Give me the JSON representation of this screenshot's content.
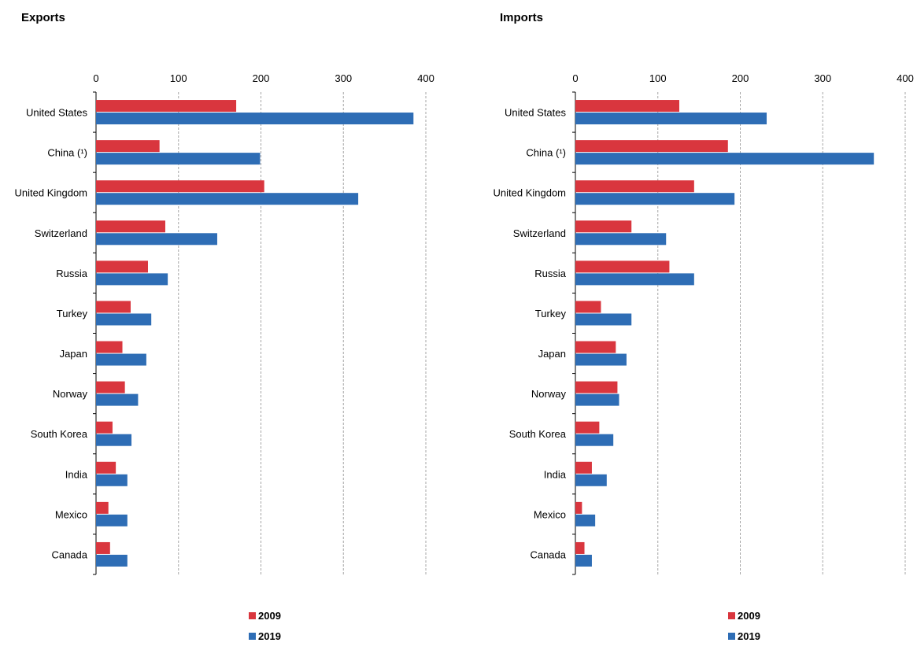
{
  "colors": {
    "series_2009": "#d9363e",
    "series_2019": "#2e6db5",
    "grid": "#a6a6a6",
    "axis": "#000000"
  },
  "chart_data": [
    {
      "type": "bar",
      "orientation": "horizontal",
      "title": "Exports",
      "categories": [
        "United States",
        "China (¹)",
        "United Kingdom",
        "Switzerland",
        "Russia",
        "Turkey",
        "Japan",
        "Norway",
        "South Korea",
        "India",
        "Mexico",
        "Canada"
      ],
      "series": [
        {
          "name": "2009",
          "values": [
            170,
            77,
            204,
            84,
            63,
            42,
            32,
            35,
            20,
            24,
            15,
            17
          ]
        },
        {
          "name": "2019",
          "values": [
            385,
            199,
            318,
            147,
            87,
            67,
            61,
            51,
            43,
            38,
            38,
            38
          ]
        }
      ],
      "xlim": [
        0,
        400
      ],
      "xticks": [
        0,
        100,
        200,
        300,
        400
      ],
      "tick_labels": [
        "0",
        "100",
        "200",
        "300",
        "400"
      ],
      "grid": true,
      "legend_position": "bottom"
    },
    {
      "type": "bar",
      "orientation": "horizontal",
      "title": "Imports",
      "categories": [
        "United States",
        "China (¹)",
        "United Kingdom",
        "Switzerland",
        "Russia",
        "Turkey",
        "Japan",
        "Norway",
        "South Korea",
        "India",
        "Mexico",
        "Canada"
      ],
      "series": [
        {
          "name": "2009",
          "values": [
            126,
            185,
            144,
            68,
            114,
            31,
            49,
            51,
            29,
            20,
            8,
            11
          ]
        },
        {
          "name": "2019",
          "values": [
            232,
            362,
            193,
            110,
            144,
            68,
            62,
            53,
            46,
            38,
            24,
            20
          ]
        }
      ],
      "xlim": [
        0,
        400
      ],
      "xticks": [
        0,
        100,
        200,
        300,
        400
      ],
      "tick_labels": [
        "0",
        "100",
        "200",
        "300",
        "400"
      ],
      "grid": true,
      "legend_position": "bottom"
    }
  ]
}
